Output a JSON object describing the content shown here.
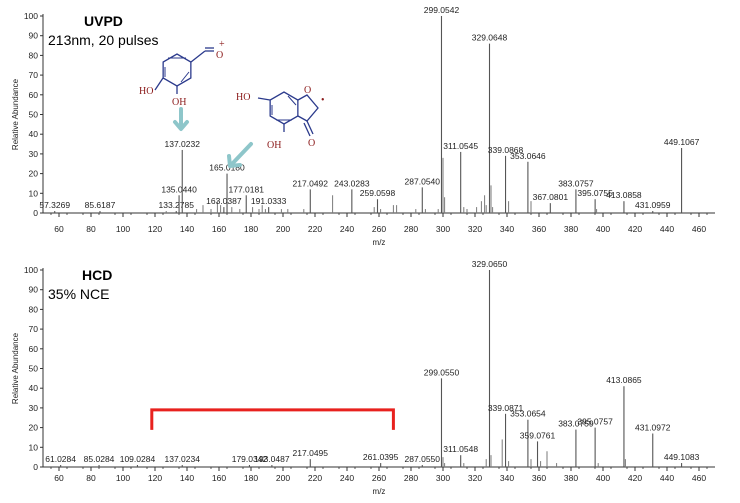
{
  "chart_data": [
    {
      "type": "bar",
      "title": "UVPD",
      "subtitle": "213nm, 20 pulses",
      "xlabel": "m/z",
      "ylabel": "Relative Abundance",
      "xlim": [
        50,
        470
      ],
      "ylim": [
        0,
        100
      ],
      "xticks": [
        60,
        80,
        100,
        120,
        140,
        160,
        180,
        200,
        220,
        240,
        260,
        280,
        300,
        320,
        340,
        360,
        380,
        400,
        420,
        440,
        460
      ],
      "yticks": [
        0,
        10,
        20,
        30,
        40,
        50,
        60,
        70,
        80,
        90,
        100
      ],
      "peaks": [
        {
          "mz": 57.3269,
          "intensity": 1,
          "label": "57.3269"
        },
        {
          "mz": 85.6187,
          "intensity": 1,
          "label": "85.6187"
        },
        {
          "mz": 133.2785,
          "intensity": 1,
          "label": "133.2785"
        },
        {
          "mz": 135.044,
          "intensity": 9,
          "label": "135.0440"
        },
        {
          "mz": 137.0232,
          "intensity": 32,
          "label": "137.0232"
        },
        {
          "mz": 163.0387,
          "intensity": 3,
          "label": "163.0387"
        },
        {
          "mz": 165.018,
          "intensity": 20,
          "label": "165.0180"
        },
        {
          "mz": 177.0181,
          "intensity": 9,
          "label": "177.0181"
        },
        {
          "mz": 191.0333,
          "intensity": 3,
          "label": "191.0333"
        },
        {
          "mz": 217.0492,
          "intensity": 12,
          "label": "217.0492"
        },
        {
          "mz": 243.0283,
          "intensity": 12,
          "label": "243.0283"
        },
        {
          "mz": 259.0598,
          "intensity": 7,
          "label": "259.0598"
        },
        {
          "mz": 287.054,
          "intensity": 13,
          "label": "287.0540"
        },
        {
          "mz": 299.0542,
          "intensity": 100,
          "label": "299.0542"
        },
        {
          "mz": 311.0545,
          "intensity": 31,
          "label": "311.0545"
        },
        {
          "mz": 329.0648,
          "intensity": 86,
          "label": "329.0648"
        },
        {
          "mz": 339.0868,
          "intensity": 29,
          "label": "339.0868"
        },
        {
          "mz": 353.0646,
          "intensity": 26,
          "label": "353.0646"
        },
        {
          "mz": 367.0801,
          "intensity": 5,
          "label": "367.0801"
        },
        {
          "mz": 383.0757,
          "intensity": 12,
          "label": "383.0757"
        },
        {
          "mz": 395.0755,
          "intensity": 7,
          "label": "395.0755"
        },
        {
          "mz": 413.0858,
          "intensity": 6,
          "label": "413.0858"
        },
        {
          "mz": 431.0959,
          "intensity": 1,
          "label": "431.0959"
        },
        {
          "mz": 449.1067,
          "intensity": 33,
          "label": "449.1067"
        }
      ],
      "minor_peaks": [
        {
          "mz": 127,
          "intensity": 1
        },
        {
          "mz": 146,
          "intensity": 2
        },
        {
          "mz": 150,
          "intensity": 4
        },
        {
          "mz": 155,
          "intensity": 2
        },
        {
          "mz": 159,
          "intensity": 6
        },
        {
          "mz": 161,
          "intensity": 4
        },
        {
          "mz": 168,
          "intensity": 3
        },
        {
          "mz": 173,
          "intensity": 2
        },
        {
          "mz": 181,
          "intensity": 3
        },
        {
          "mz": 185,
          "intensity": 2
        },
        {
          "mz": 187,
          "intensity": 4
        },
        {
          "mz": 189,
          "intensity": 2
        },
        {
          "mz": 199,
          "intensity": 2
        },
        {
          "mz": 203,
          "intensity": 2
        },
        {
          "mz": 213,
          "intensity": 2
        },
        {
          "mz": 231,
          "intensity": 9
        },
        {
          "mz": 257,
          "intensity": 3
        },
        {
          "mz": 261,
          "intensity": 2
        },
        {
          "mz": 269,
          "intensity": 4
        },
        {
          "mz": 271,
          "intensity": 4
        },
        {
          "mz": 283,
          "intensity": 2
        },
        {
          "mz": 289,
          "intensity": 2
        },
        {
          "mz": 297,
          "intensity": 2
        },
        {
          "mz": 300,
          "intensity": 28
        },
        {
          "mz": 301,
          "intensity": 8
        },
        {
          "mz": 313,
          "intensity": 3
        },
        {
          "mz": 315,
          "intensity": 2
        },
        {
          "mz": 321,
          "intensity": 3
        },
        {
          "mz": 324,
          "intensity": 6
        },
        {
          "mz": 326,
          "intensity": 9
        },
        {
          "mz": 327,
          "intensity": 4
        },
        {
          "mz": 330,
          "intensity": 14
        },
        {
          "mz": 331,
          "intensity": 3
        },
        {
          "mz": 341,
          "intensity": 6
        },
        {
          "mz": 355,
          "intensity": 6
        },
        {
          "mz": 396,
          "intensity": 2
        }
      ],
      "structures": {
        "ion1": {
          "oh_left": "HO",
          "oh_bottom": "OH",
          "carbonyl": "O",
          "charge": "+"
        },
        "ion2": {
          "oh_top": "HO",
          "oh_bottom": "OH",
          "ring_o": "O",
          "keto_o": "O",
          "radical": "•"
        }
      },
      "annotation_color": "#8ec6ca"
    },
    {
      "type": "bar",
      "title": "HCD",
      "subtitle": "35% NCE",
      "xlabel": "m/z",
      "ylabel": "Relative Abundance",
      "xlim": [
        50,
        470
      ],
      "ylim": [
        0,
        100
      ],
      "xticks": [
        60,
        80,
        100,
        120,
        140,
        160,
        180,
        200,
        220,
        240,
        260,
        280,
        300,
        320,
        340,
        360,
        380,
        400,
        420,
        440,
        460
      ],
      "yticks": [
        0,
        10,
        20,
        30,
        40,
        50,
        60,
        70,
        80,
        90,
        100
      ],
      "peaks": [
        {
          "mz": 61.0284,
          "intensity": 1,
          "label": "61.0284"
        },
        {
          "mz": 85.0284,
          "intensity": 1,
          "label": "85.0284"
        },
        {
          "mz": 109.0284,
          "intensity": 1,
          "label": "109.0284"
        },
        {
          "mz": 137.0234,
          "intensity": 1,
          "label": "137.0234"
        },
        {
          "mz": 179.0342,
          "intensity": 1,
          "label": "179.0342"
        },
        {
          "mz": 193.0487,
          "intensity": 1,
          "label": "193.0487"
        },
        {
          "mz": 217.0495,
          "intensity": 4,
          "label": "217.0495"
        },
        {
          "mz": 261.0395,
          "intensity": 2,
          "label": "261.0395"
        },
        {
          "mz": 287.055,
          "intensity": 1,
          "label": "287.0550"
        },
        {
          "mz": 299.055,
          "intensity": 45,
          "label": "299.0550"
        },
        {
          "mz": 311.0548,
          "intensity": 6,
          "label": "311.0548"
        },
        {
          "mz": 329.065,
          "intensity": 100,
          "label": "329.0650"
        },
        {
          "mz": 339.0871,
          "intensity": 27,
          "label": "339.0871"
        },
        {
          "mz": 353.0654,
          "intensity": 24,
          "label": "353.0654"
        },
        {
          "mz": 359.0761,
          "intensity": 13,
          "label": "359.0761"
        },
        {
          "mz": 383.0759,
          "intensity": 19,
          "label": "383.0759"
        },
        {
          "mz": 395.0757,
          "intensity": 20,
          "label": "395.0757"
        },
        {
          "mz": 413.0865,
          "intensity": 41,
          "label": "413.0865"
        },
        {
          "mz": 431.0972,
          "intensity": 17,
          "label": "431.0972"
        },
        {
          "mz": 449.1083,
          "intensity": 2,
          "label": "449.1083"
        }
      ],
      "minor_peaks": [
        {
          "mz": 300,
          "intensity": 5
        },
        {
          "mz": 301,
          "intensity": 2
        },
        {
          "mz": 313,
          "intensity": 2
        },
        {
          "mz": 327,
          "intensity": 4
        },
        {
          "mz": 330,
          "intensity": 6
        },
        {
          "mz": 337,
          "intensity": 14
        },
        {
          "mz": 341,
          "intensity": 3
        },
        {
          "mz": 355,
          "intensity": 4
        },
        {
          "mz": 361,
          "intensity": 3
        },
        {
          "mz": 365,
          "intensity": 8
        },
        {
          "mz": 371,
          "intensity": 2
        },
        {
          "mz": 397,
          "intensity": 2
        },
        {
          "mz": 414,
          "intensity": 4
        }
      ],
      "bracket": {
        "mz_start": 118,
        "mz_end": 269,
        "level": 29,
        "color": "#e8211e"
      }
    }
  ]
}
